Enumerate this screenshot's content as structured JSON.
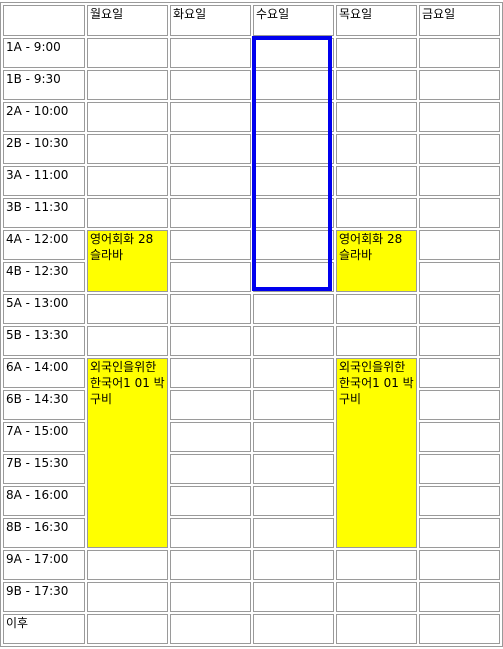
{
  "colors": {
    "course_highlight": "#ffff00",
    "selection_border": "#0000ee",
    "grid_border": "#9a9a9a"
  },
  "header": {
    "corner": "",
    "days": [
      "월요일",
      "화요일",
      "수요일",
      "목요일",
      "금요일"
    ]
  },
  "slots": [
    "1A - 9:00",
    "1B - 9:30",
    "2A - 10:00",
    "2B - 10:30",
    "3A - 11:00",
    "3B - 11:30",
    "4A - 12:00",
    "4B - 12:30",
    "5A - 13:00",
    "5B - 13:30",
    "6A - 14:00",
    "6B - 14:30",
    "7A - 15:00",
    "7B - 15:30",
    "8A - 16:00",
    "8B - 16:30",
    "9A - 17:00",
    "9B - 17:30",
    "이후"
  ],
  "courses": {
    "english_conversation": "영어회화 28 슬라바",
    "korean_for_foreigners": "외국인을위한한국어1 01 박구비"
  },
  "selection": {
    "day": "수요일",
    "from_slot": "1A - 9:00",
    "to_slot": "4B - 12:30"
  }
}
